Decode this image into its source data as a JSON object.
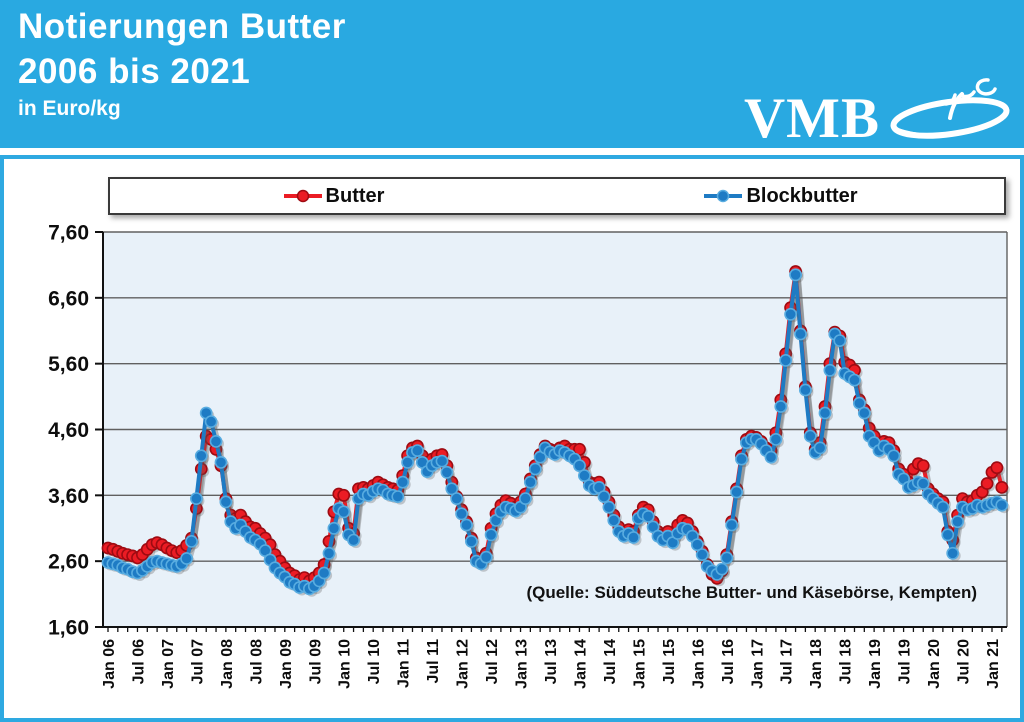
{
  "header": {
    "title_line1": "Notierungen Butter",
    "title_line2": "2006 bis 2021",
    "subtitle": "in Euro/kg",
    "logo_text": "VMB",
    "background_color": "#29A9E1"
  },
  "source_note": "(Quelle: Süddeutsche Butter- und Käsebörse, Kempten)",
  "colors": {
    "header_background": "#29A9E1",
    "panel_border": "#2EA9E1",
    "plot_background": "#E8F1F9",
    "gridline": "#606060",
    "axis": "#111111",
    "butter_red": "#EB1C24",
    "butter_red_edge": "#9E0B12",
    "blockbutter_blue": "#1E7BC4",
    "blockbutter_blue_edge": "#58ACE0"
  },
  "chart_data": {
    "type": "line",
    "title": "Notierungen Butter 2006 bis 2021",
    "ylabel": "Euro/kg",
    "ylim": [
      1.6,
      7.6
    ],
    "grid": true,
    "legend_position": "top",
    "yticks": [
      7.6,
      6.6,
      5.6,
      4.6,
      3.6,
      2.6,
      1.6
    ],
    "ytick_labels": [
      "7,60",
      "6,60",
      "5,60",
      "4,60",
      "3,60",
      "2,60",
      "1,60"
    ],
    "xtick_labels": [
      "Jan 06",
      "Jul 06",
      "Jan 07",
      "Jul 07",
      "Jan 08",
      "Jul 08",
      "Jan 09",
      "Jul 09",
      "Jan 10",
      "Jul 10",
      "Jan 11",
      "Jul 11",
      "Jan 12",
      "Jul 12",
      "Jan 13",
      "Jul 13",
      "Jan 14",
      "Jul 14",
      "Jan 15",
      "Jul 15",
      "Jan 16",
      "Jul 16",
      "Jan 17",
      "Jul 17",
      "Jan 18",
      "Jul 18",
      "Jan 19",
      "Jul 19",
      "Jan 20",
      "Jul 20",
      "Jan 21"
    ],
    "x_axis": {
      "start": "Jan 2006",
      "end": "Mar 2021",
      "interval": "monthly"
    },
    "series": [
      {
        "name": "Butter",
        "color": "#EB1C24",
        "edge_color": "#9E0B12",
        "values": [
          2.8,
          2.78,
          2.75,
          2.72,
          2.7,
          2.68,
          2.65,
          2.7,
          2.78,
          2.85,
          2.88,
          2.85,
          2.8,
          2.76,
          2.73,
          2.76,
          2.84,
          2.95,
          3.4,
          4.0,
          4.5,
          4.45,
          4.3,
          4.05,
          3.55,
          3.3,
          3.25,
          3.3,
          3.2,
          3.12,
          3.1,
          3.02,
          2.95,
          2.85,
          2.7,
          2.6,
          2.5,
          2.42,
          2.38,
          2.32,
          2.35,
          2.3,
          2.35,
          2.42,
          2.55,
          2.9,
          3.35,
          3.62,
          3.6,
          3.1,
          3.02,
          3.7,
          3.72,
          3.7,
          3.75,
          3.8,
          3.76,
          3.72,
          3.7,
          3.68,
          3.9,
          4.2,
          4.32,
          4.35,
          4.2,
          4.1,
          4.15,
          4.2,
          4.22,
          4.05,
          3.8,
          3.58,
          3.38,
          3.2,
          2.95,
          2.65,
          2.6,
          2.72,
          3.1,
          3.32,
          3.45,
          3.52,
          3.48,
          3.42,
          3.5,
          3.62,
          3.85,
          4.05,
          4.22,
          4.35,
          4.3,
          4.28,
          4.32,
          4.35,
          4.3,
          4.3,
          4.3,
          4.1,
          3.8,
          3.78,
          3.8,
          3.65,
          3.5,
          3.3,
          3.12,
          3.02,
          3.08,
          3.05,
          3.3,
          3.42,
          3.38,
          3.2,
          3.05,
          3.0,
          3.05,
          2.95,
          3.15,
          3.22,
          3.18,
          3.05,
          2.9,
          2.75,
          2.55,
          2.4,
          2.34,
          2.45,
          2.7,
          3.2,
          3.7,
          4.2,
          4.45,
          4.5,
          4.48,
          4.42,
          4.32,
          4.28,
          4.55,
          5.05,
          5.75,
          6.45,
          7.0,
          6.1,
          5.25,
          4.55,
          4.3,
          4.4,
          4.95,
          5.6,
          6.08,
          6.02,
          5.62,
          5.58,
          5.5,
          5.05,
          4.9,
          4.62,
          4.5,
          4.35,
          4.42,
          4.4,
          4.28,
          4.0,
          3.92,
          3.8,
          4.0,
          4.08,
          4.05,
          3.7,
          3.62,
          3.55,
          3.5,
          3.05,
          2.92,
          3.3,
          3.55,
          3.5,
          3.52,
          3.6,
          3.65,
          3.78,
          3.95,
          4.02,
          3.72
        ]
      },
      {
        "name": "Blockbutter",
        "color": "#1E7BC4",
        "edge_color": "#58ACE0",
        "values": [
          2.58,
          2.56,
          2.54,
          2.5,
          2.48,
          2.44,
          2.42,
          2.46,
          2.52,
          2.58,
          2.6,
          2.58,
          2.56,
          2.54,
          2.52,
          2.56,
          2.64,
          2.9,
          3.55,
          4.2,
          4.85,
          4.72,
          4.42,
          4.1,
          3.5,
          3.2,
          3.1,
          3.15,
          3.05,
          2.96,
          2.92,
          2.86,
          2.76,
          2.62,
          2.5,
          2.42,
          2.36,
          2.28,
          2.25,
          2.2,
          2.22,
          2.18,
          2.22,
          2.3,
          2.42,
          2.72,
          3.1,
          3.4,
          3.35,
          3.0,
          2.92,
          3.55,
          3.62,
          3.6,
          3.66,
          3.7,
          3.68,
          3.62,
          3.6,
          3.58,
          3.8,
          4.1,
          4.25,
          4.28,
          4.1,
          3.96,
          4.05,
          4.1,
          4.12,
          3.95,
          3.7,
          3.55,
          3.32,
          3.15,
          2.9,
          2.6,
          2.56,
          2.66,
          3.0,
          3.22,
          3.35,
          3.42,
          3.4,
          3.36,
          3.42,
          3.55,
          3.8,
          4.0,
          4.18,
          4.32,
          4.26,
          4.22,
          4.28,
          4.25,
          4.2,
          4.15,
          4.05,
          3.9,
          3.75,
          3.7,
          3.72,
          3.58,
          3.42,
          3.22,
          3.05,
          2.98,
          3.02,
          2.96,
          3.25,
          3.32,
          3.28,
          3.12,
          2.98,
          2.92,
          2.98,
          2.88,
          3.02,
          3.1,
          3.08,
          2.98,
          2.85,
          2.7,
          2.52,
          2.45,
          2.4,
          2.48,
          2.65,
          3.15,
          3.65,
          4.15,
          4.4,
          4.45,
          4.45,
          4.38,
          4.28,
          4.18,
          4.45,
          4.95,
          5.65,
          6.35,
          6.95,
          6.05,
          5.2,
          4.5,
          4.25,
          4.32,
          4.85,
          5.5,
          6.05,
          5.95,
          5.45,
          5.4,
          5.35,
          5.0,
          4.85,
          4.5,
          4.4,
          4.28,
          4.35,
          4.3,
          4.2,
          3.92,
          3.85,
          3.72,
          3.75,
          3.8,
          3.78,
          3.62,
          3.55,
          3.48,
          3.42,
          3.0,
          2.72,
          3.2,
          3.42,
          3.38,
          3.4,
          3.45,
          3.42,
          3.45,
          3.48,
          3.5,
          3.45
        ]
      }
    ]
  }
}
